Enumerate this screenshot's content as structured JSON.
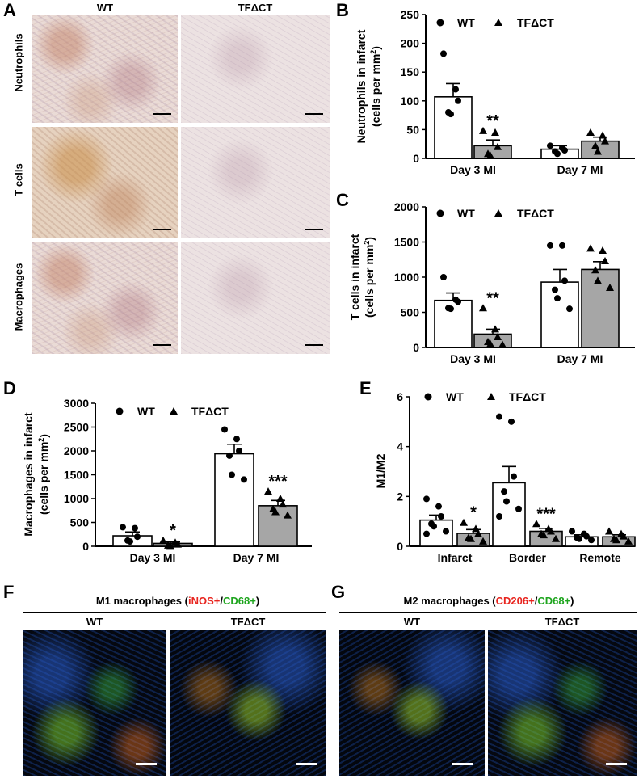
{
  "panel_labels": {
    "a": "A",
    "b": "B",
    "c": "C",
    "d": "D",
    "e": "E",
    "f": "F",
    "g": "G"
  },
  "panelA": {
    "col_wt": "WT",
    "col_tf": "TFΔCT",
    "row_labels": [
      "Neutrophils",
      "T cells",
      "Macrophages"
    ]
  },
  "legend": {
    "wt": "WT",
    "tf": "TFΔCT"
  },
  "colors": {
    "wt_bar": "#ffffff",
    "tf_bar": "#a6a6a6",
    "red": "#e8251f",
    "green": "#1ea51e"
  },
  "chart_data": [
    {
      "id": "B",
      "type": "bar",
      "categories": [
        "Day 3 MI",
        "Day 7 MI"
      ],
      "ylabel_line1": "Neutrophils in infarct",
      "ylabel_line2": "(cells per mm",
      "ylabel_sup": "2",
      "ylabel_end": ")",
      "ylim": [
        0,
        250
      ],
      "yticks": [
        "0",
        "50",
        "100",
        "150",
        "200",
        "250"
      ],
      "series": [
        {
          "name": "WT",
          "means": [
            107,
            16
          ],
          "sems": [
            23,
            6
          ],
          "points": [
            [
              182,
              120,
              100,
              80,
              77
            ],
            [
              22,
              18,
              14,
              12,
              8
            ]
          ]
        },
        {
          "name": "TFΔCT",
          "means": [
            22,
            30
          ],
          "sems": [
            10,
            7
          ],
          "points": [
            [
              48,
              45,
              20,
              8,
              5
            ],
            [
              45,
              40,
              30,
              22,
              12
            ]
          ]
        }
      ],
      "annotations": [
        {
          "text": "**",
          "cat": 0
        }
      ]
    },
    {
      "id": "C",
      "type": "bar",
      "categories": [
        "Day 3 MI",
        "Day 7 MI"
      ],
      "ylabel_line1": "T cells in infarct",
      "ylabel_line2": "(cells per mm",
      "ylabel_sup": "2",
      "ylabel_end": ")",
      "ylim": [
        0,
        2000
      ],
      "yticks": [
        "0",
        "500",
        "1000",
        "1500",
        "2000"
      ],
      "series": [
        {
          "name": "WT",
          "means": [
            670,
            930
          ],
          "sems": [
            105,
            180
          ],
          "points": [
            [
              1000,
              680,
              650,
              560,
              550
            ],
            [
              1450,
              1450,
              950,
              820,
              700,
              550
            ]
          ]
        },
        {
          "name": "TFΔCT",
          "means": [
            190,
            1110
          ],
          "sems": [
            70,
            110
          ],
          "points": [
            [
              560,
              260,
              150,
              80,
              50,
              40
            ],
            [
              1410,
              1380,
              1230,
              1100,
              950,
              850
            ]
          ]
        }
      ],
      "annotations": [
        {
          "text": "**",
          "cat": 0
        }
      ]
    },
    {
      "id": "D",
      "type": "bar",
      "categories": [
        "Day 3 MI",
        "Day 7 MI"
      ],
      "ylabel_line1": "Macrophages in infarct",
      "ylabel_line2": "(cells per mm",
      "ylabel_sup": "2",
      "ylabel_end": ")",
      "ylim": [
        0,
        3000
      ],
      "yticks": [
        "0",
        "500",
        "1000",
        "1500",
        "2000",
        "2500",
        "3000"
      ],
      "series": [
        {
          "name": "WT",
          "means": [
            220,
            1940
          ],
          "sems": [
            80,
            200
          ],
          "points": [
            [
              400,
              380,
              200,
              120,
              100
            ],
            [
              2450,
              2250,
              2000,
              1900,
              1500,
              1400
            ]
          ]
        },
        {
          "name": "TFΔCT",
          "means": [
            60,
            850
          ],
          "sems": [
            30,
            110
          ],
          "points": [
            [
              120,
              80,
              40,
              20,
              10
            ],
            [
              1150,
              1000,
              880,
              780,
              720,
              650
            ]
          ]
        }
      ],
      "annotations": [
        {
          "text": "*",
          "cat": 0
        },
        {
          "text": "***",
          "cat": 1
        }
      ]
    },
    {
      "id": "E",
      "type": "bar",
      "categories": [
        "Infarct",
        "Border",
        "Remote"
      ],
      "ylabel_line1": "M1/M2",
      "ylim": [
        0,
        6
      ],
      "yticks": [
        "0",
        "2",
        "4",
        "6"
      ],
      "series": [
        {
          "name": "WT",
          "means": [
            1.05,
            2.55,
            0.38
          ],
          "sems": [
            0.2,
            0.65,
            0.08
          ],
          "points": [
            [
              1.9,
              1.6,
              1.2,
              0.9,
              0.8,
              0.6,
              0.5
            ],
            [
              5.2,
              5.0,
              2.8,
              2.2,
              1.8,
              1.5,
              1.2
            ],
            [
              0.6,
              0.5,
              0.4,
              0.35,
              0.3,
              0.25
            ]
          ]
        },
        {
          "name": "TFΔCT",
          "means": [
            0.52,
            0.6,
            0.38
          ],
          "sems": [
            0.15,
            0.12,
            0.08
          ],
          "points": [
            [
              0.95,
              0.7,
              0.5,
              0.35,
              0.3,
              0.2
            ],
            [
              0.9,
              0.7,
              0.6,
              0.5,
              0.45,
              0.3
            ],
            [
              0.6,
              0.5,
              0.4,
              0.3,
              0.25,
              0.2
            ]
          ]
        }
      ],
      "annotations": [
        {
          "text": "*",
          "cat": 0
        },
        {
          "text": "***",
          "cat": 1
        }
      ]
    }
  ],
  "panelF": {
    "title_pre": "M1 macrophages (",
    "title_red": "iNOS+",
    "title_slash": "/",
    "title_green": "CD68+",
    "title_post": ")",
    "col_wt": "WT",
    "col_tf": "TFΔCT"
  },
  "panelG": {
    "title_pre": "M2 macrophages (",
    "title_red": "CD206+",
    "title_slash": "/",
    "title_green": "CD68+",
    "title_post": ")",
    "col_wt": "WT",
    "col_tf": "TFΔCT"
  }
}
